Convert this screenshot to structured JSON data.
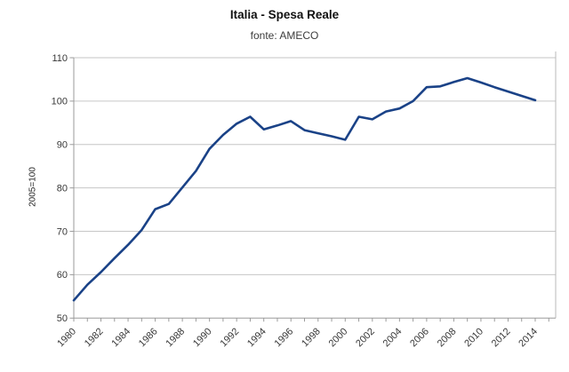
{
  "chart_data": {
    "type": "line",
    "title": "Italia - Spesa Reale",
    "subtitle": "fonte: AMECO",
    "xlabel": "",
    "ylabel": "2005=100",
    "x": [
      1980,
      1981,
      1982,
      1983,
      1984,
      1985,
      1986,
      1987,
      1988,
      1989,
      1990,
      1991,
      1992,
      1993,
      1994,
      1995,
      1996,
      1997,
      1998,
      1999,
      2000,
      2001,
      2002,
      2003,
      2004,
      2005,
      2006,
      2007,
      2008,
      2009,
      2010,
      2011,
      2012,
      2013,
      2014
    ],
    "series": [
      {
        "name": "Spesa Reale",
        "values": [
          54.1,
          57.7,
          60.6,
          63.8,
          66.9,
          70.3,
          75.1,
          76.3,
          80.1,
          83.9,
          89.0,
          92.2,
          94.8,
          96.4,
          93.5,
          94.4,
          95.4,
          93.3,
          92.6,
          91.9,
          91.1,
          96.4,
          95.8,
          97.6,
          98.3,
          100.0,
          103.2,
          103.4,
          104.4,
          105.3,
          104.3,
          103.2,
          102.2,
          101.2,
          100.2
        ]
      }
    ],
    "ylim": [
      50,
      110
    ],
    "yticks": [
      50,
      60,
      70,
      80,
      90,
      100,
      110
    ],
    "xtick_labels": [
      "1980",
      "1982",
      "1984",
      "1986",
      "1988",
      "1990",
      "1992",
      "1994",
      "1996",
      "1998",
      "2000",
      "2002",
      "2004",
      "2006",
      "2008",
      "2010",
      "2012",
      "2014"
    ],
    "grid": "horizontal",
    "legend": "none"
  },
  "colors": {
    "line": "#1a4287",
    "gridline": "#c6c6c6",
    "axis": "#9b9b9b",
    "border_right": "#b9b9b9",
    "tick_label": "#383838"
  }
}
